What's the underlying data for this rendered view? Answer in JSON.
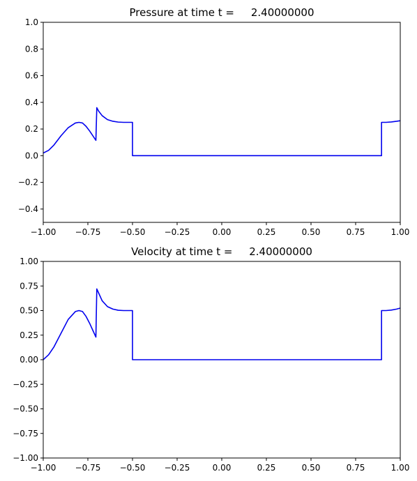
{
  "chart_data": [
    {
      "type": "line",
      "title": "Pressure at time t =     2.40000000",
      "xlabel": "",
      "ylabel": "",
      "xlim": [
        -1.0,
        1.0
      ],
      "ylim": [
        -0.5,
        1.0
      ],
      "xticks": [
        -1.0,
        -0.75,
        -0.5,
        -0.25,
        0.0,
        0.25,
        0.5,
        0.75,
        1.0
      ],
      "xtick_labels": [
        "−1.00",
        "−0.75",
        "−0.50",
        "−0.25",
        "0.00",
        "0.25",
        "0.50",
        "0.75",
        "1.00"
      ],
      "yticks": [
        -0.4,
        -0.2,
        0.0,
        0.2,
        0.4,
        0.6,
        0.8,
        1.0
      ],
      "ytick_labels": [
        "−0.4",
        "−0.2",
        "0.0",
        "0.2",
        "0.4",
        "0.6",
        "0.8",
        "1.0"
      ],
      "grid": false,
      "series": [
        {
          "color": "#0000ee",
          "x": [
            -1.0,
            -0.97,
            -0.94,
            -0.9,
            -0.86,
            -0.82,
            -0.8,
            -0.78,
            -0.76,
            -0.74,
            -0.72,
            -0.705,
            -0.7,
            -0.69,
            -0.67,
            -0.64,
            -0.61,
            -0.58,
            -0.55,
            -0.52,
            -0.5,
            -0.5,
            -0.4,
            -0.2,
            0.0,
            0.2,
            0.4,
            0.6,
            0.8,
            0.895,
            0.895,
            0.92,
            0.95,
            0.98,
            1.0
          ],
          "y": [
            0.02,
            0.04,
            0.08,
            0.15,
            0.21,
            0.245,
            0.25,
            0.245,
            0.22,
            0.185,
            0.145,
            0.115,
            0.36,
            0.335,
            0.3,
            0.27,
            0.258,
            0.252,
            0.25,
            0.25,
            0.25,
            0.0,
            0.0,
            0.0,
            0.0,
            0.0,
            0.0,
            0.0,
            0.0,
            0.0,
            0.25,
            0.25,
            0.253,
            0.258,
            0.262
          ]
        }
      ]
    },
    {
      "type": "line",
      "title": "Velocity at time t =     2.40000000",
      "xlabel": "",
      "ylabel": "",
      "xlim": [
        -1.0,
        1.0
      ],
      "ylim": [
        -1.0,
        1.0
      ],
      "xticks": [
        -1.0,
        -0.75,
        -0.5,
        -0.25,
        0.0,
        0.25,
        0.5,
        0.75,
        1.0
      ],
      "xtick_labels": [
        "−1.00",
        "−0.75",
        "−0.50",
        "−0.25",
        "0.00",
        "0.25",
        "0.50",
        "0.75",
        "1.00"
      ],
      "yticks": [
        -1.0,
        -0.75,
        -0.5,
        -0.25,
        0.0,
        0.25,
        0.5,
        0.75,
        1.0
      ],
      "ytick_labels": [
        "−1.00",
        "−0.75",
        "−0.50",
        "−0.25",
        "0.00",
        "0.25",
        "0.50",
        "0.75",
        "1.00"
      ],
      "grid": false,
      "series": [
        {
          "color": "#0000ee",
          "x": [
            -1.0,
            -0.97,
            -0.94,
            -0.9,
            -0.86,
            -0.82,
            -0.8,
            -0.78,
            -0.76,
            -0.74,
            -0.72,
            -0.705,
            -0.7,
            -0.69,
            -0.67,
            -0.64,
            -0.61,
            -0.58,
            -0.55,
            -0.52,
            -0.5,
            -0.5,
            -0.4,
            -0.2,
            0.0,
            0.2,
            0.4,
            0.6,
            0.8,
            0.895,
            0.895,
            0.92,
            0.95,
            0.98,
            1.0
          ],
          "y": [
            0.0,
            0.05,
            0.13,
            0.27,
            0.41,
            0.49,
            0.5,
            0.49,
            0.44,
            0.37,
            0.29,
            0.23,
            0.72,
            0.68,
            0.6,
            0.54,
            0.515,
            0.503,
            0.5,
            0.5,
            0.5,
            0.0,
            0.0,
            0.0,
            0.0,
            0.0,
            0.0,
            0.0,
            0.0,
            0.0,
            0.5,
            0.5,
            0.505,
            0.515,
            0.525
          ]
        }
      ]
    }
  ]
}
